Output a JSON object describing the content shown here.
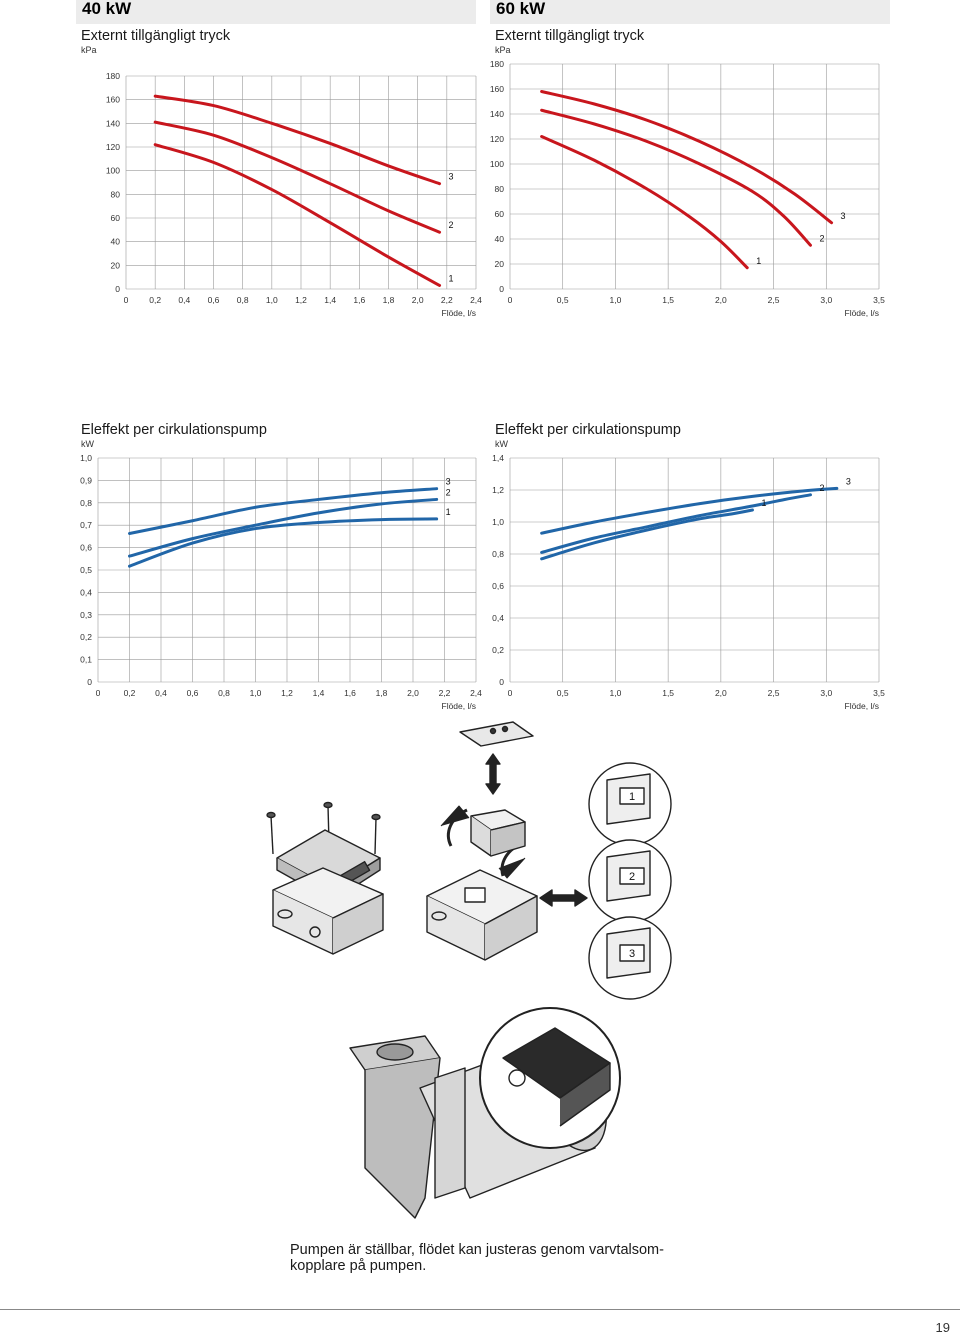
{
  "colors": {
    "pressure_curve": "#c8161d",
    "power_curve": "#2166a8",
    "grid": "#9a9a9a",
    "header_bar": "#ececec"
  },
  "left_heading": "40 kW",
  "right_heading": "60 kW",
  "charts": {
    "pressure_40": {
      "title": "Externt tillgängligt tryck",
      "unit": "kPa",
      "xlabel": "Flöde, l/s"
    },
    "pressure_60": {
      "title": "Externt tillgängligt tryck",
      "unit": "kPa",
      "xlabel": "Flöde, l/s"
    },
    "power_40": {
      "title": "Eleffekt per cirkulationspump",
      "unit": "kW",
      "xlabel": "Flöde, l/s"
    },
    "power_60": {
      "title": "Eleffekt per cirkulationspump",
      "unit": "kW",
      "xlabel": "Flöde, l/s"
    }
  },
  "chart_data": [
    {
      "id": "pressure_40",
      "type": "line",
      "color": "#c8161d",
      "xlim": [
        0,
        2.4
      ],
      "ylim": [
        0,
        180
      ],
      "xticks": [
        "0",
        "0,2",
        "0,4",
        "0,6",
        "0,8",
        "1,0",
        "1,2",
        "1,4",
        "1,6",
        "1,8",
        "2,0",
        "2,2",
        "2,4"
      ],
      "yticks": [
        "0",
        "20",
        "40",
        "60",
        "80",
        "100",
        "120",
        "140",
        "160",
        "180"
      ],
      "xtick_values": [
        0,
        0.2,
        0.4,
        0.6,
        0.8,
        1.0,
        1.2,
        1.4,
        1.6,
        1.8,
        2.0,
        2.2,
        2.4
      ],
      "ytick_values": [
        0,
        20,
        40,
        60,
        80,
        100,
        120,
        140,
        160,
        180
      ],
      "series": [
        {
          "name": "3",
          "points": [
            [
              0.2,
              163
            ],
            [
              0.6,
              155
            ],
            [
              1.0,
              140
            ],
            [
              1.4,
              123
            ],
            [
              1.8,
              104
            ],
            [
              2.15,
              89
            ]
          ]
        },
        {
          "name": "2",
          "points": [
            [
              0.2,
              141
            ],
            [
              0.6,
              130
            ],
            [
              1.0,
              111
            ],
            [
              1.4,
              89
            ],
            [
              1.8,
              66
            ],
            [
              2.15,
              48
            ]
          ]
        },
        {
          "name": "1",
          "points": [
            [
              0.2,
              122
            ],
            [
              0.6,
              107
            ],
            [
              1.0,
              84
            ],
            [
              1.4,
              56
            ],
            [
              1.8,
              27
            ],
            [
              2.15,
              3
            ]
          ]
        }
      ]
    },
    {
      "id": "pressure_60",
      "type": "line",
      "color": "#c8161d",
      "xlim": [
        0,
        3.5
      ],
      "ylim": [
        0,
        180
      ],
      "xticks": [
        "0",
        "0,5",
        "1,0",
        "1,5",
        "2,0",
        "2,5",
        "3,0",
        "3,5"
      ],
      "yticks": [
        "0",
        "20",
        "40",
        "60",
        "80",
        "100",
        "120",
        "140",
        "160",
        "180"
      ],
      "xtick_values": [
        0,
        0.5,
        1.0,
        1.5,
        2.0,
        2.5,
        3.0,
        3.5
      ],
      "ytick_values": [
        0,
        20,
        40,
        60,
        80,
        100,
        120,
        140,
        160,
        180
      ],
      "series": [
        {
          "name": "3",
          "points": [
            [
              0.3,
              158
            ],
            [
              0.8,
              148
            ],
            [
              1.3,
              135
            ],
            [
              1.8,
              118
            ],
            [
              2.3,
              97
            ],
            [
              2.7,
              76
            ],
            [
              3.05,
              53
            ]
          ]
        },
        {
          "name": "2",
          "points": [
            [
              0.3,
              143
            ],
            [
              0.8,
              132
            ],
            [
              1.3,
              118
            ],
            [
              1.8,
              100
            ],
            [
              2.3,
              78
            ],
            [
              2.6,
              58
            ],
            [
              2.85,
              35
            ]
          ]
        },
        {
          "name": "1",
          "points": [
            [
              0.3,
              122
            ],
            [
              0.8,
              103
            ],
            [
              1.3,
              80
            ],
            [
              1.7,
              58
            ],
            [
              2.0,
              38
            ],
            [
              2.25,
              17
            ]
          ]
        }
      ]
    },
    {
      "id": "power_40",
      "type": "line",
      "color": "#2166a8",
      "xlim": [
        0,
        2.4
      ],
      "ylim": [
        0,
        1.0
      ],
      "xticks": [
        "0",
        "0,2",
        "0,4",
        "0,6",
        "0,8",
        "1,0",
        "1,2",
        "1,4",
        "1,6",
        "1,8",
        "2,0",
        "2,2",
        "2,4"
      ],
      "yticks": [
        "0",
        "0,1",
        "0,2",
        "0,3",
        "0,4",
        "0,5",
        "0,6",
        "0,7",
        "0,8",
        "0,9",
        "1,0"
      ],
      "xtick_values": [
        0,
        0.2,
        0.4,
        0.6,
        0.8,
        1.0,
        1.2,
        1.4,
        1.6,
        1.8,
        2.0,
        2.2,
        2.4
      ],
      "ytick_values": [
        0,
        0.1,
        0.2,
        0.3,
        0.4,
        0.5,
        0.6,
        0.7,
        0.8,
        0.9,
        1.0
      ],
      "series": [
        {
          "name": "3",
          "points": [
            [
              0.2,
              0.663
            ],
            [
              0.6,
              0.72
            ],
            [
              1.0,
              0.78
            ],
            [
              1.4,
              0.815
            ],
            [
              1.8,
              0.845
            ],
            [
              2.15,
              0.863
            ]
          ]
        },
        {
          "name": "2",
          "points": [
            [
              0.2,
              0.562
            ],
            [
              0.6,
              0.64
            ],
            [
              1.0,
              0.7
            ],
            [
              1.4,
              0.755
            ],
            [
              1.8,
              0.795
            ],
            [
              2.15,
              0.815
            ]
          ]
        },
        {
          "name": "1",
          "points": [
            [
              0.2,
              0.517
            ],
            [
              0.6,
              0.62
            ],
            [
              1.0,
              0.685
            ],
            [
              1.4,
              0.712
            ],
            [
              1.8,
              0.725
            ],
            [
              2.15,
              0.728
            ]
          ]
        }
      ]
    },
    {
      "id": "power_60",
      "type": "line",
      "color": "#2166a8",
      "xlim": [
        0,
        3.5
      ],
      "ylim": [
        0,
        1.4
      ],
      "xticks": [
        "0",
        "0,5",
        "1,0",
        "1,5",
        "2,0",
        "2,5",
        "3,0",
        "3,5"
      ],
      "yticks": [
        "0",
        "0,2",
        "0,4",
        "0,6",
        "0,8",
        "1,0",
        "1,2",
        "1,4"
      ],
      "xtick_values": [
        0,
        0.5,
        1.0,
        1.5,
        2.0,
        2.5,
        3.0,
        3.5
      ],
      "ytick_values": [
        0,
        0.2,
        0.4,
        0.6,
        0.8,
        1.0,
        1.2,
        1.4
      ],
      "series": [
        {
          "name": "3",
          "points": [
            [
              0.3,
              0.93
            ],
            [
              0.8,
              1.0
            ],
            [
              1.3,
              1.06
            ],
            [
              1.8,
              1.115
            ],
            [
              2.3,
              1.16
            ],
            [
              2.8,
              1.195
            ],
            [
              3.1,
              1.21
            ]
          ]
        },
        {
          "name": "2",
          "points": [
            [
              0.3,
              0.81
            ],
            [
              0.8,
              0.9
            ],
            [
              1.3,
              0.97
            ],
            [
              1.8,
              1.04
            ],
            [
              2.3,
              1.1
            ],
            [
              2.6,
              1.14
            ],
            [
              2.85,
              1.17
            ]
          ]
        },
        {
          "name": "1",
          "points": [
            [
              0.3,
              0.77
            ],
            [
              0.8,
              0.87
            ],
            [
              1.3,
              0.95
            ],
            [
              1.8,
              1.02
            ],
            [
              2.1,
              1.05
            ],
            [
              2.3,
              1.075
            ]
          ]
        }
      ]
    }
  ],
  "illustration": {
    "switch_positions": [
      "1",
      "2",
      "3"
    ],
    "caption": "Pumpen är ställbar, flödet kan justeras genom varvtalsom-kopplare på pumpen."
  },
  "page_number": "19"
}
